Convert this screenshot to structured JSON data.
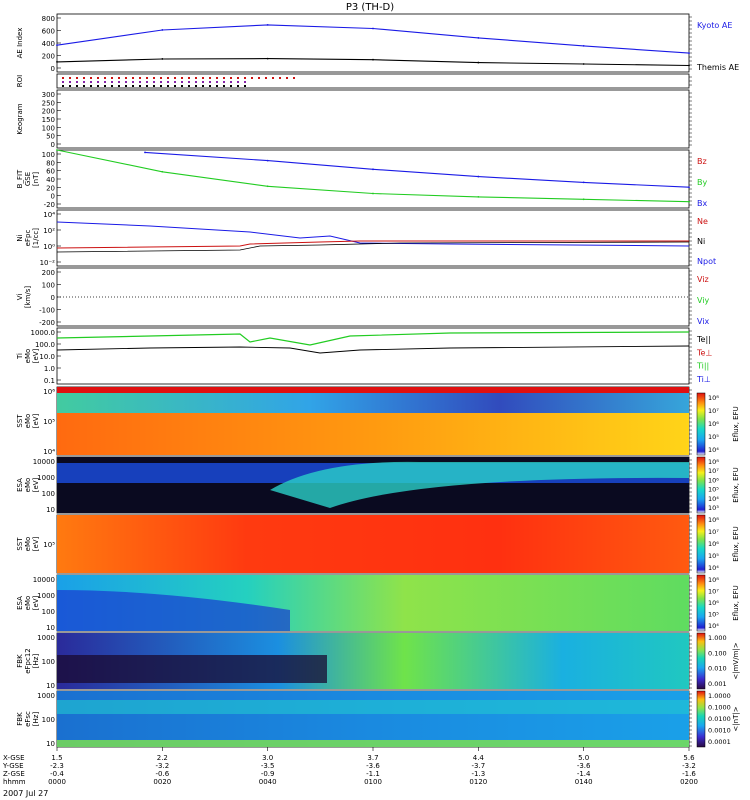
{
  "title": "P3 (TH-D)",
  "date_label": "2007 Jul 27",
  "colors": {
    "blue": "#1a1ae6",
    "green": "#22cc22",
    "red": "#cc1111",
    "black": "#000000"
  },
  "panels": [
    {
      "id": "ae",
      "ylabel": [
        "AE Index"
      ],
      "ticks": [
        "800",
        "600",
        "400",
        "200",
        "0"
      ],
      "legend": [
        {
          "text": "Kyoto AE",
          "color": "blue"
        },
        {
          "text": "Themis AE",
          "color": "black"
        }
      ]
    },
    {
      "id": "roi",
      "ylabel": [
        "ROI"
      ],
      "ticks": [],
      "legend": []
    },
    {
      "id": "keogram",
      "ylabel": [
        "Keogram"
      ],
      "ticks": [
        "300",
        "250",
        "200",
        "150",
        "100",
        "50",
        "0"
      ],
      "legend": []
    },
    {
      "id": "bfit",
      "ylabel": [
        "B_FIT",
        "GSE",
        "[nT]"
      ],
      "ticks": [
        "100",
        "80",
        "60",
        "40",
        "20",
        "0",
        "-20"
      ],
      "legend": [
        {
          "text": "Bz",
          "color": "red"
        },
        {
          "text": "By",
          "color": "green"
        },
        {
          "text": "Bx",
          "color": "blue"
        }
      ]
    },
    {
      "id": "ni",
      "ylabel": [
        "Ni",
        "eFpc",
        "[1/cc]"
      ],
      "ticks": [
        "10⁴",
        "10²",
        "10⁰",
        "10⁻²"
      ],
      "legend": [
        {
          "text": "Ne",
          "color": "red"
        },
        {
          "text": "Ni",
          "color": "black"
        },
        {
          "text": "Npot",
          "color": "blue"
        }
      ]
    },
    {
      "id": "vi",
      "ylabel": [
        "Vi",
        "[km/s]"
      ],
      "ticks": [
        "200",
        "100",
        "0",
        "-100",
        "-200"
      ],
      "legend": [
        {
          "text": "Viz",
          "color": "red"
        },
        {
          "text": "Viy",
          "color": "green"
        },
        {
          "text": "Vix",
          "color": "blue"
        }
      ]
    },
    {
      "id": "ti",
      "ylabel": [
        "Ti",
        "eMo",
        "[eV]"
      ],
      "ticks": [
        "1000.0",
        "100.0",
        "10.0",
        "1.0",
        "0.1"
      ],
      "legend": [
        {
          "text": "Te||",
          "color": "black"
        },
        {
          "text": "Te⊥",
          "color": "red"
        },
        {
          "text": "Ti||",
          "color": "green"
        },
        {
          "text": "Ti⊥",
          "color": "blue"
        }
      ]
    },
    {
      "id": "sst_e",
      "ylabel": [
        "SST",
        "eMo",
        "[eV]"
      ],
      "ticks": [
        "10⁶",
        "10⁵",
        "10⁴"
      ],
      "legend": []
    },
    {
      "id": "esa_e",
      "ylabel": [
        "ESA",
        "eMo",
        "[eV]"
      ],
      "ticks": [
        "10000",
        "1000",
        "100",
        "10"
      ],
      "legend": []
    },
    {
      "id": "sst_i",
      "ylabel": [
        "SST",
        "eMo",
        "[eV]"
      ],
      "ticks": [
        "10⁵"
      ],
      "legend": []
    },
    {
      "id": "esa_i",
      "ylabel": [
        "ESA",
        "eMo",
        "[eV]"
      ],
      "ticks": [
        "10000",
        "1000",
        "100",
        "10"
      ],
      "legend": []
    },
    {
      "id": "fbk_e",
      "ylabel": [
        "FBK",
        "eFpc12",
        "[Hz]"
      ],
      "ticks": [
        "1000",
        "100",
        "10"
      ],
      "legend": []
    },
    {
      "id": "fbk_b",
      "ylabel": [
        "FBK",
        "eFsc",
        "[Hz]"
      ],
      "ticks": [
        "1000",
        "100",
        "10"
      ],
      "legend": []
    }
  ],
  "colorbars": [
    {
      "id": "cb1",
      "label": "Eflux, EFU",
      "ticks": [
        "10⁸",
        "10⁷",
        "10⁶",
        "10⁵",
        "10⁴"
      ]
    },
    {
      "id": "cb2",
      "label": "Eflux, EFU",
      "ticks": [
        "10⁸",
        "10⁷",
        "10⁶",
        "10⁵",
        "10⁴",
        "10³"
      ]
    },
    {
      "id": "cb3",
      "label": "Eflux, EFU",
      "ticks": [
        "10⁸",
        "10⁷",
        "10⁶",
        "10⁵",
        "10⁴"
      ]
    },
    {
      "id": "cb4",
      "label": "Eflux, EFU",
      "ticks": [
        "10⁸",
        "10⁷",
        "10⁶",
        "10⁵",
        "10⁴"
      ]
    },
    {
      "id": "cb5",
      "label": "<|mV/m|>",
      "ticks": [
        "1.000",
        "0.100",
        "0.010",
        "0.001"
      ]
    },
    {
      "id": "cb6",
      "label": "<|nT|>",
      "ticks": [
        "1.0000",
        "0.1000",
        "0.0100",
        "0.0010",
        "0.0001"
      ]
    }
  ],
  "xaxis": {
    "row_labels": [
      "X-GSE",
      "Y-GSE",
      "Z-GSE",
      "hhmm"
    ],
    "columns": [
      [
        "1.5",
        "-2.3",
        "-0.4",
        "0000"
      ],
      [
        "2.2",
        "-3.2",
        "-0.6",
        "0020"
      ],
      [
        "3.0",
        "-3.5",
        "-0.9",
        "0040"
      ],
      [
        "3.7",
        "-3.6",
        "-1.1",
        "0100"
      ],
      [
        "4.4",
        "-3.7",
        "-1.3",
        "0120"
      ],
      [
        "5.0",
        "-3.6",
        "-1.4",
        "0140"
      ],
      [
        "5.6",
        "-3.2",
        "-1.6",
        "0200"
      ]
    ]
  },
  "chart_data": {
    "type": "line",
    "title": "P3 (TH-D)",
    "x": [
      "0000",
      "0020",
      "0040",
      "0100",
      "0120",
      "0140",
      "0200"
    ],
    "series": [
      {
        "panel": "ae",
        "name": "Kyoto AE",
        "color": "blue",
        "values": [
          370,
          580,
          650,
          600,
          470,
          360,
          260
        ]
      },
      {
        "panel": "ae",
        "name": "Themis AE",
        "color": "black",
        "values": [
          140,
          180,
          185,
          170,
          130,
          110,
          90
        ]
      },
      {
        "panel": "bfit",
        "name": "Bx",
        "color": "blue",
        "values": [
          null,
          95,
          78,
          60,
          45,
          33,
          23
        ]
      },
      {
        "panel": "bfit",
        "name": "By",
        "color": "green",
        "values": [
          100,
          55,
          25,
          10,
          3,
          -2,
          -7
        ]
      }
    ]
  }
}
